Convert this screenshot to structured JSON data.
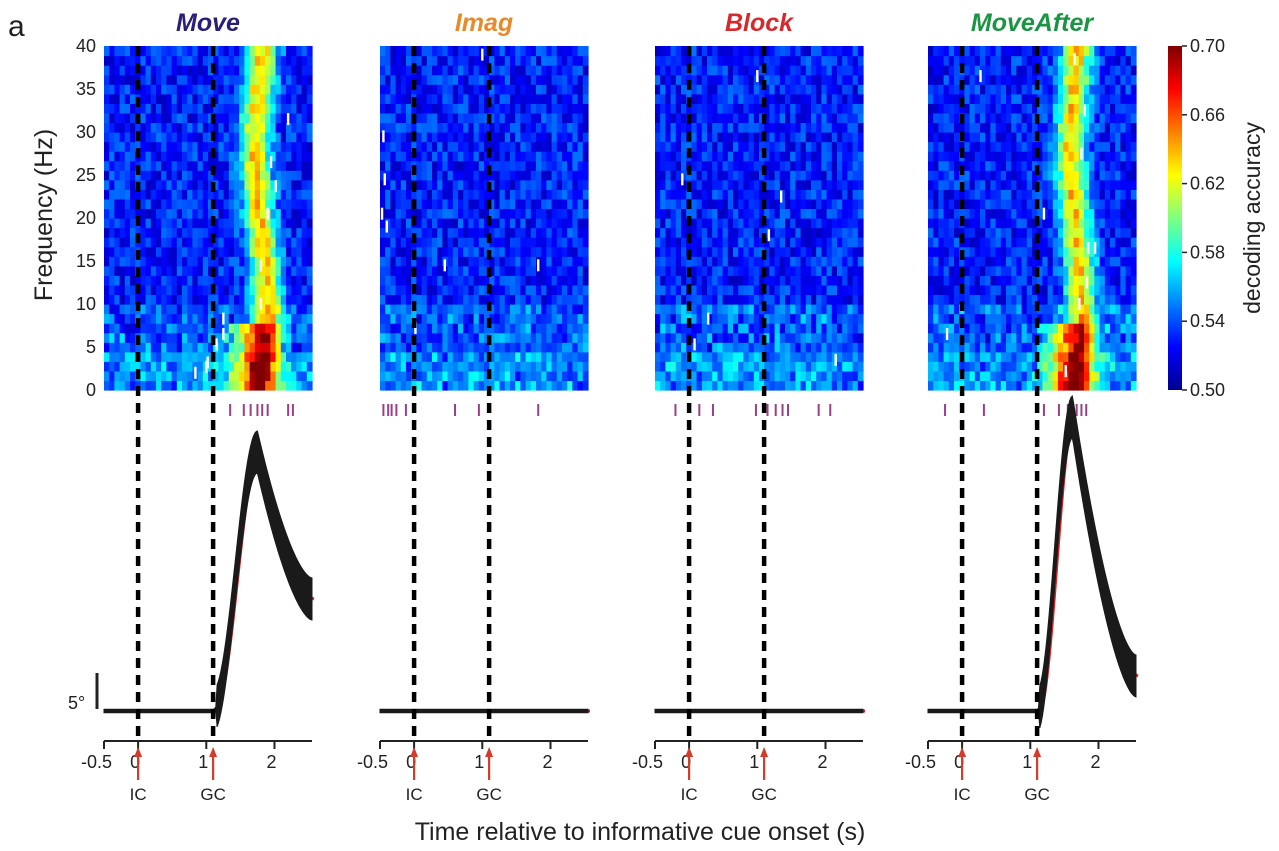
{
  "panel_letter": "a",
  "chart_data": {
    "type": "heatmap",
    "panels": [
      {
        "name": "Move",
        "title_color": "#2a1f78",
        "gc_time": 1.1,
        "sig_times": [
          1.35,
          1.55,
          1.65,
          1.75,
          1.82,
          1.9,
          2.2,
          2.27
        ],
        "white_marks": [
          [
            0.84,
            2
          ],
          [
            1.0,
            2.7
          ],
          [
            1.02,
            3.2
          ],
          [
            1.15,
            5.3
          ],
          [
            1.25,
            6.5
          ],
          [
            1.25,
            8.3
          ],
          [
            1.8,
            10
          ],
          [
            1.8,
            14.5
          ],
          [
            1.9,
            20.5
          ],
          [
            2.02,
            23.7
          ],
          [
            1.95,
            26.5
          ],
          [
            2.2,
            31.5
          ]
        ],
        "trace": {
          "baseline_level": 0,
          "onset_time": 1.1,
          "peak_time": 1.75,
          "peak_deg": 37,
          "end_deg": 16,
          "band_deg": 3
        }
      },
      {
        "name": "Imag",
        "title_color": "#e8892a",
        "gc_time": 1.1,
        "sig_times": [
          -0.45,
          -0.38,
          -0.33,
          -0.26,
          -0.12,
          0.6,
          0.95,
          1.82
        ],
        "white_marks": [
          [
            -0.47,
            20.5
          ],
          [
            -0.4,
            19
          ],
          [
            -0.45,
            29.5
          ],
          [
            -0.43,
            24.5
          ],
          [
            0.02,
            7.2
          ],
          [
            0.45,
            14.5
          ],
          [
            1.0,
            39
          ],
          [
            1.82,
            14.5
          ]
        ],
        "trace": {
          "baseline_level": 0,
          "onset_time": 1.1,
          "peak_time": 1.75,
          "peak_deg": 0,
          "end_deg": 0,
          "band_deg": 0.4
        }
      },
      {
        "name": "Block",
        "title_color": "#d7282b",
        "gc_time": 1.1,
        "sig_times": [
          -0.2,
          0.15,
          0.35,
          0.98,
          1.15,
          1.27,
          1.37,
          1.45,
          1.9,
          2.07
        ],
        "white_marks": [
          [
            0.08,
            5.3
          ],
          [
            0.28,
            8.3
          ],
          [
            1.0,
            36.5
          ],
          [
            1.17,
            18
          ],
          [
            1.35,
            22.5
          ],
          [
            2.15,
            3.5
          ],
          [
            -0.1,
            24.5
          ]
        ],
        "trace": {
          "baseline_level": 0,
          "onset_time": 1.1,
          "peak_time": 1.75,
          "peak_deg": 0,
          "end_deg": 0,
          "band_deg": 0.4
        }
      },
      {
        "name": "MoveAfter",
        "title_color": "#1b9444",
        "gc_time": 1.1,
        "sig_times": [
          -0.25,
          0.32,
          1.2,
          1.42,
          1.55,
          1.6,
          1.68,
          1.75,
          1.82
        ],
        "white_marks": [
          [
            -0.22,
            6.5
          ],
          [
            0.27,
            36.5
          ],
          [
            1.2,
            20.5
          ],
          [
            1.52,
            2.2
          ],
          [
            1.65,
            38.5
          ],
          [
            1.75,
            27.5
          ],
          [
            1.8,
            32.5
          ],
          [
            1.85,
            16.5
          ],
          [
            1.95,
            16.5
          ],
          [
            1.83,
            12.5
          ],
          [
            1.72,
            10
          ]
        ],
        "trace": {
          "baseline_level": 0,
          "onset_time": 1.1,
          "peak_time": 1.62,
          "peak_deg": 42,
          "end_deg": 5,
          "band_deg": 3
        }
      }
    ],
    "x_range": [
      -0.5,
      2.55
    ],
    "x_ticks": [
      "-0.5",
      "0",
      "1",
      "2"
    ],
    "y_range": [
      0,
      40
    ],
    "y_ticks": [
      "0",
      "5",
      "10",
      "15",
      "20",
      "25",
      "30",
      "35",
      "40"
    ],
    "ylabel": "Frequency (Hz)",
    "xlabel": "Time relative to informative cue onset  (s)",
    "colorbar": {
      "label": "decoding accuracy",
      "range": [
        0.5,
        0.7
      ],
      "ticks": [
        "0.50",
        "0.54",
        "0.58",
        "0.62",
        "0.66",
        "0.70"
      ]
    },
    "event_labels": [
      "IC",
      "GC"
    ],
    "scale_bar_label": "5°",
    "colors": {
      "sig_tick": "#9b3f88",
      "arrow": "#d43b2a",
      "dashed": "#000000",
      "trace_band": "#1a1a1a",
      "trace_edge": "#e02020"
    }
  }
}
